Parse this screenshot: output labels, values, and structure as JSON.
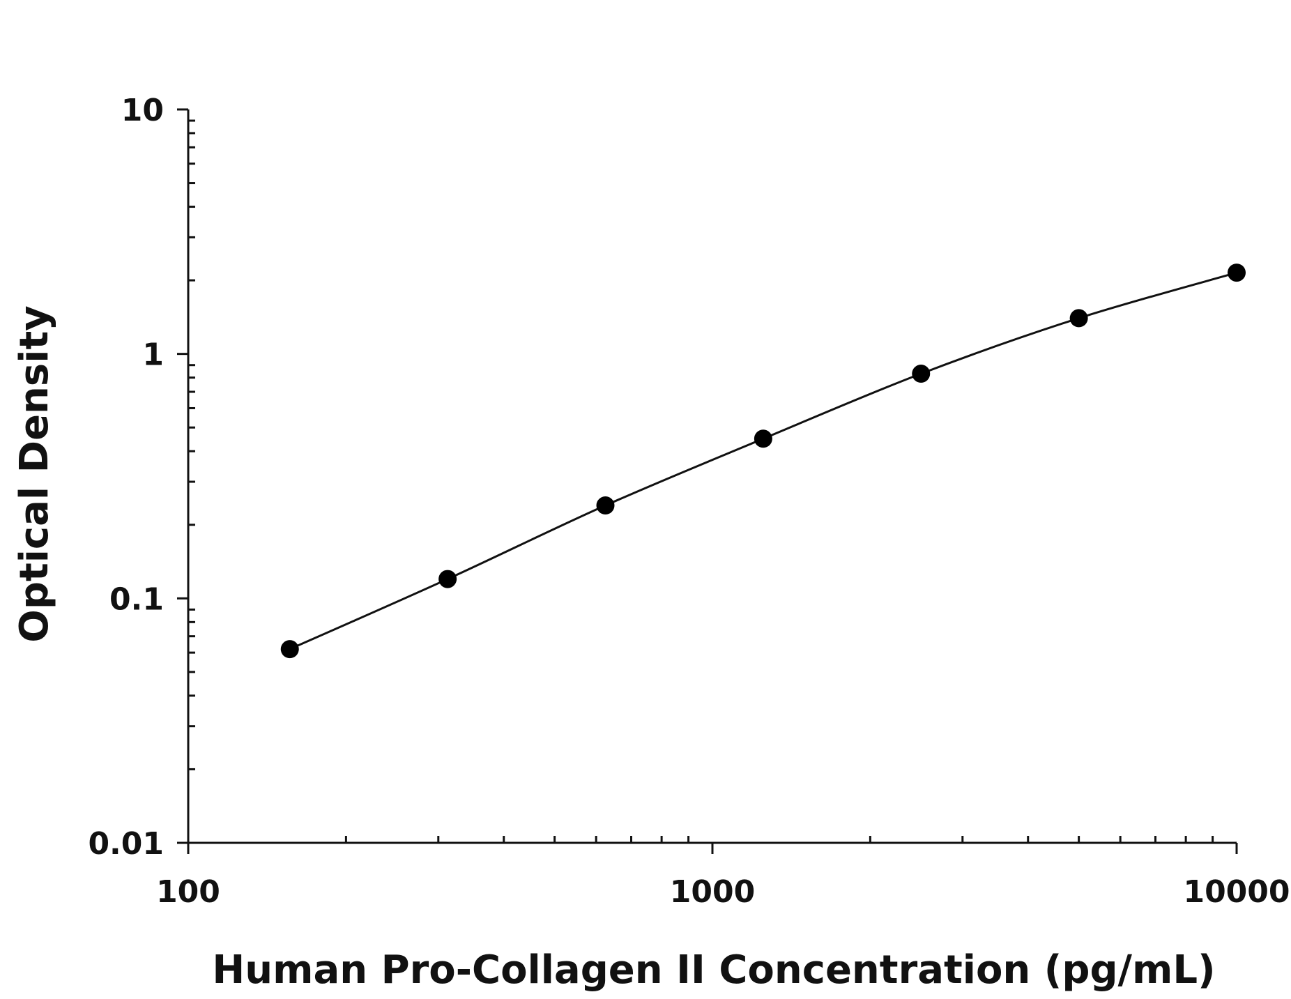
{
  "chart_data": {
    "type": "scatter",
    "title": "",
    "xlabel": "Human Pro-Collagen II Concentration (pg/mL)",
    "ylabel": "Optical Density",
    "x_scale": "log",
    "y_scale": "log",
    "xlim": [
      100,
      10000
    ],
    "ylim": [
      0.01,
      10
    ],
    "x_ticks": [
      "100",
      "1000",
      "10000"
    ],
    "y_ticks": [
      "10",
      "1",
      "0.1",
      "0.01"
    ],
    "grid": false,
    "legend": "none",
    "fit_line": "smooth curve through points",
    "marker_color": "#000000",
    "line_color": "#111111",
    "series": [
      {
        "x": [
          156.25,
          312.5,
          625,
          1250,
          2500,
          5000,
          10000
        ],
        "y": [
          0.062,
          0.12,
          0.24,
          0.45,
          0.83,
          1.4,
          2.15
        ]
      }
    ]
  }
}
